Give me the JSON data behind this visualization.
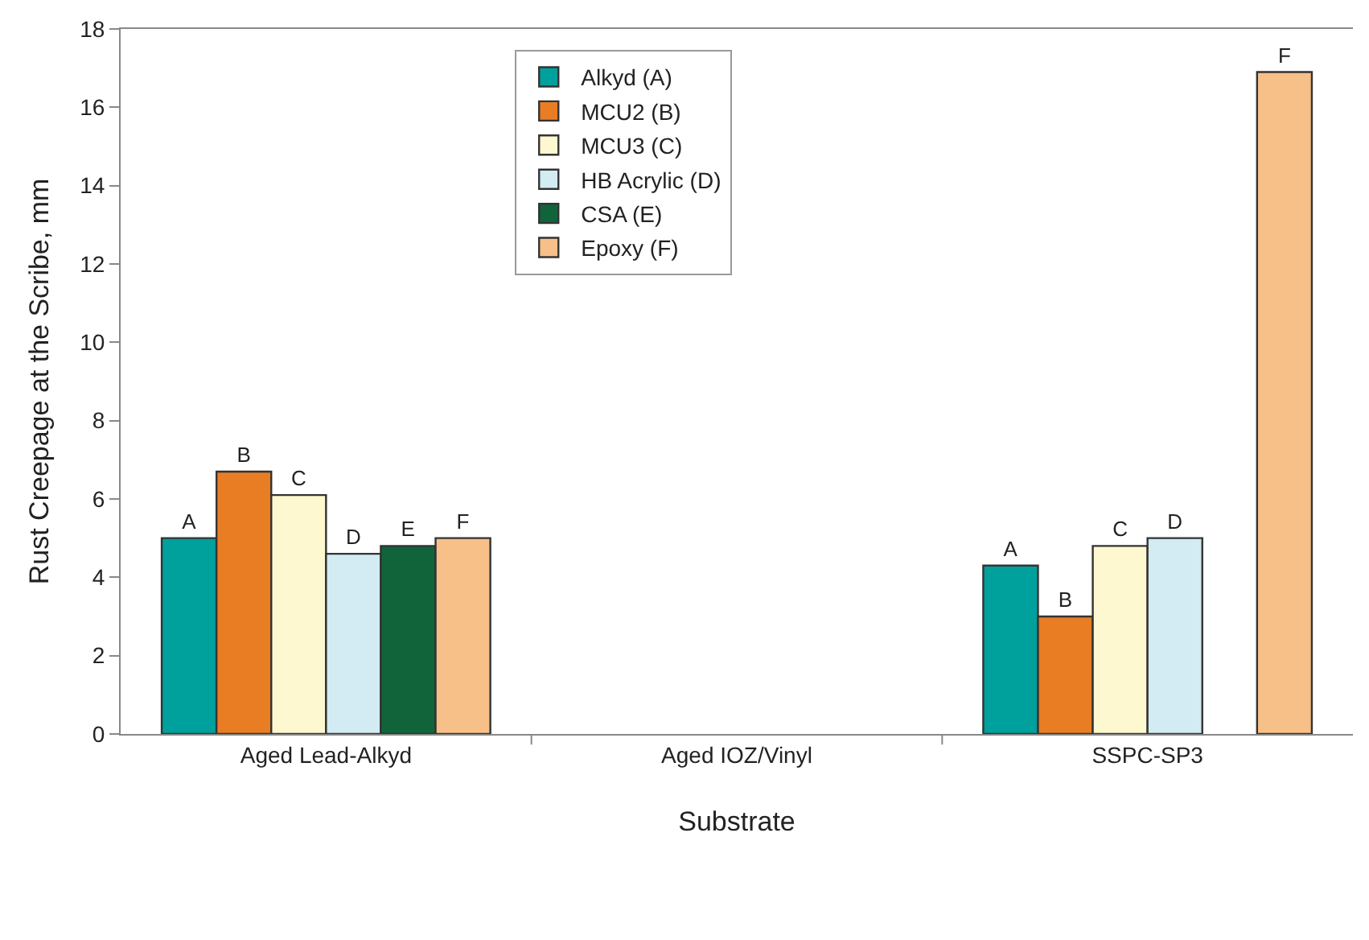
{
  "chart_data": {
    "type": "bar",
    "xlabel": "Substrate",
    "ylabel": "Rust Creepage at the Scribe, mm",
    "categories": [
      "Aged Lead-Alkyd",
      "Aged IOZ/Vinyl",
      "SSPC-SP3"
    ],
    "series": [
      {
        "name": "Alkyd (A)",
        "color": "#00a09d",
        "values": [
          5.0,
          null,
          4.3
        ],
        "value_labels": [
          "A",
          null,
          "A"
        ]
      },
      {
        "name": "MCU2 (B)",
        "color": "#e87d24",
        "values": [
          6.7,
          null,
          3.0
        ],
        "value_labels": [
          "B",
          null,
          "B"
        ]
      },
      {
        "name": "MCU3 (C)",
        "color": "#fdf8cf",
        "values": [
          6.1,
          null,
          4.8
        ],
        "value_labels": [
          "C",
          null,
          "C"
        ]
      },
      {
        "name": "HB Acrylic (D)",
        "color": "#d3ebf2",
        "values": [
          4.6,
          null,
          5.0
        ],
        "value_labels": [
          "D",
          null,
          "D"
        ]
      },
      {
        "name": "CSA (E)",
        "color": "#11643a",
        "values": [
          4.8,
          null,
          null
        ],
        "value_labels": [
          "E",
          null,
          null
        ]
      },
      {
        "name": "Epoxy (F)",
        "color": "#f7c089",
        "values": [
          5.0,
          null,
          16.9
        ],
        "value_labels": [
          "F",
          null,
          "F"
        ]
      }
    ],
    "ylim": [
      0,
      18
    ],
    "yticks": [
      0,
      2,
      4,
      6,
      8,
      10,
      12,
      14,
      16,
      18
    ],
    "grid": false,
    "legend": "top"
  }
}
